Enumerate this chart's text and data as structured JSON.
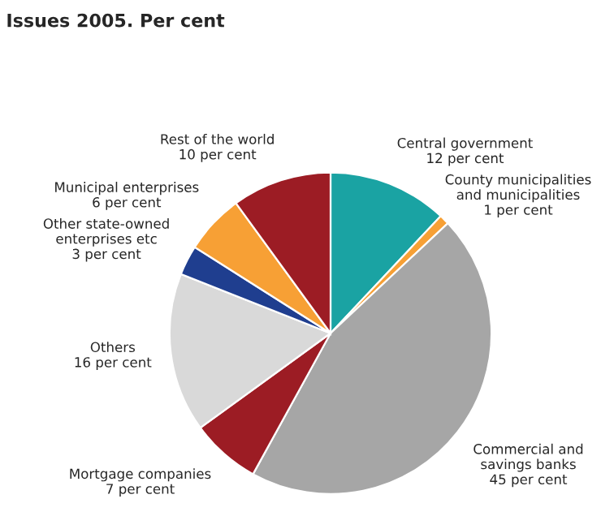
{
  "chart_data": {
    "type": "pie",
    "title": "Issues 2005. Per cent",
    "categories": [
      "Central government",
      "County municipalities\nand municipalities",
      "Commercial and\nsavings banks",
      "Mortgage companies",
      "Others",
      "Other state-owned\nenterprises etc",
      "Municipal enterprises",
      "Rest of the world"
    ],
    "values": [
      12,
      1,
      45,
      7,
      16,
      3,
      6,
      10
    ],
    "value_labels": [
      "12 per cent",
      "1 per cent",
      "45 per cent",
      "7 per cent",
      "16 per cent",
      "3 per cent",
      "6 per cent",
      "10 per cent"
    ],
    "colors": [
      "#1aa3a3",
      "#f7a035",
      "#a6a6a6",
      "#9c1c24",
      "#d9d9d9",
      "#1f3e8f",
      "#f7a035",
      "#9c1c24"
    ]
  }
}
